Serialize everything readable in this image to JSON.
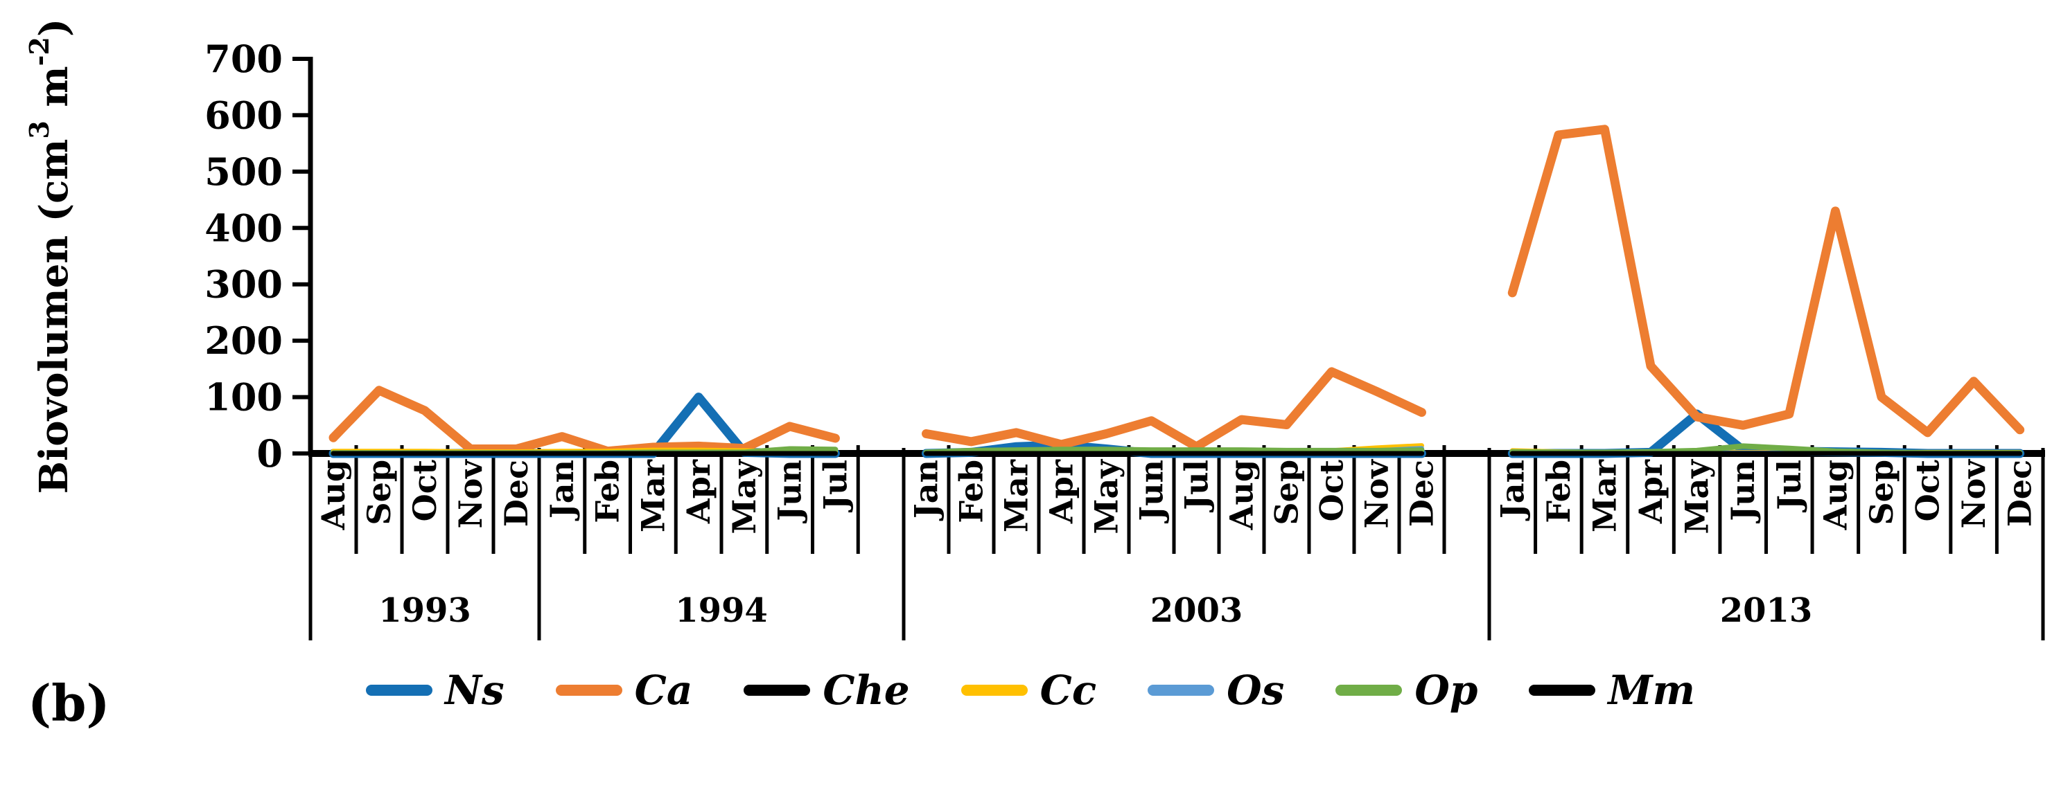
{
  "panel_label": "(b)",
  "legend": {
    "items": [
      {
        "label": "Ns",
        "color": "#146FB4"
      },
      {
        "label": "Ca",
        "color": "#ED7D31"
      },
      {
        "label": "Che",
        "color": "#000000"
      },
      {
        "label": "Cc",
        "color": "#FFC000"
      },
      {
        "label": "Os",
        "color": "#5B9BD5"
      },
      {
        "label": "Op",
        "color": "#70AD47"
      },
      {
        "label": "Mm",
        "color": "#000000"
      }
    ]
  },
  "chart_data": {
    "type": "line",
    "ylabel": "Biovolumen (cm³ m⁻²)",
    "ylabel_parts": [
      {
        "t": "Biovolumen (cm",
        "sup": false
      },
      {
        "t": "3",
        "sup": true
      },
      {
        "t": " m",
        "sup": false
      },
      {
        "t": "-2",
        "sup": true
      },
      {
        "t": ")",
        "sup": false
      }
    ],
    "ylim": [
      0,
      700
    ],
    "ystep": 100,
    "yticks": [
      0,
      100,
      200,
      300,
      400,
      500,
      600,
      700
    ],
    "grid": false,
    "legend_position": "bottom",
    "groups": [
      {
        "year": "1993",
        "segment": "A",
        "slots": 5,
        "months": [
          "Aug",
          "Sep",
          "Oct",
          "Nov",
          "Dec"
        ]
      },
      {
        "year": "1994",
        "segment": "A",
        "slots": 8,
        "months": [
          "Jan",
          "Feb",
          "Mar",
          "Apr",
          "May",
          "Jun",
          "Jul"
        ]
      },
      {
        "year": "2003",
        "segment": "B",
        "slots": 13,
        "months": [
          "Jan",
          "Feb",
          "Mar",
          "Apr",
          "May",
          "Jun",
          "Jul",
          "Aug",
          "Sep",
          "Oct",
          "Nov",
          "Dec"
        ]
      },
      {
        "year": "2013",
        "segment": "C",
        "slots": 12,
        "months": [
          "Jan",
          "Feb",
          "Mar",
          "Apr",
          "May",
          "Jun",
          "Jul",
          "Aug",
          "Sep",
          "Oct",
          "Nov",
          "Dec"
        ]
      }
    ],
    "series": [
      {
        "name": "Ns",
        "color": "#146FB4",
        "width": 13,
        "values": {
          "1993": [
            0,
            0,
            0,
            0,
            0
          ],
          "1994": [
            0,
            0,
            0,
            100,
            2,
            0,
            0
          ],
          "2003": [
            0,
            2,
            12,
            15,
            8,
            0,
            0,
            0,
            0,
            0,
            0,
            0
          ],
          "2013": [
            0,
            0,
            0,
            2,
            70,
            6,
            4,
            3,
            2,
            0,
            0,
            0
          ]
        }
      },
      {
        "name": "Ca",
        "color": "#ED7D31",
        "width": 13,
        "values": {
          "1993": [
            28,
            112,
            76,
            8,
            8
          ],
          "1994": [
            30,
            4,
            11,
            13,
            9,
            48,
            27
          ],
          "2003": [
            35,
            21,
            37,
            16,
            35,
            58,
            12,
            60,
            51,
            145,
            110,
            73
          ],
          "2013": [
            285,
            565,
            575,
            155,
            65,
            50,
            70,
            430,
            100,
            37,
            128,
            42
          ]
        }
      },
      {
        "name": "Che",
        "color": "#000000",
        "width": 7,
        "values": {
          "1993": [
            2,
            2,
            2,
            2,
            2
          ],
          "1994": [
            2,
            2,
            2,
            2,
            2,
            2,
            2
          ],
          "2003": [
            1,
            1,
            1,
            1,
            1,
            1,
            1,
            1,
            1,
            1,
            1,
            1
          ],
          "2013": [
            1,
            1,
            1,
            3,
            3,
            1,
            1,
            1,
            1,
            1,
            1,
            1
          ]
        }
      },
      {
        "name": "Cc",
        "color": "#FFC000",
        "width": 7,
        "values": {
          "1993": [
            4,
            4,
            4,
            3,
            3
          ],
          "1994": [
            4,
            4,
            6,
            6,
            5,
            3,
            3
          ],
          "2003": [
            2,
            2,
            2,
            2,
            2,
            2,
            2,
            2,
            3,
            5,
            10,
            14
          ],
          "2013": [
            5,
            3,
            2,
            2,
            2,
            2,
            2,
            2,
            2,
            2,
            2,
            2
          ]
        }
      },
      {
        "name": "Os",
        "color": "#5B9BD5",
        "width": 7,
        "values": {
          "1993": [
            0,
            0,
            0,
            0,
            0
          ],
          "1994": [
            0,
            0,
            0,
            0,
            0,
            0,
            0
          ],
          "2003": [
            0,
            0,
            0,
            0,
            0,
            0,
            0,
            0,
            0,
            2,
            5,
            9
          ],
          "2013": [
            1,
            1,
            1,
            1,
            1,
            1,
            1,
            1,
            1,
            1,
            1,
            1
          ]
        }
      },
      {
        "name": "Op",
        "color": "#70AD47",
        "width": 8,
        "values": {
          "1993": [
            1,
            1,
            1,
            1,
            1
          ],
          "1994": [
            1,
            1,
            2,
            2,
            2,
            8,
            7
          ],
          "2003": [
            2,
            5,
            6,
            7,
            7,
            6,
            6,
            6,
            5,
            5,
            5,
            6
          ],
          "2013": [
            3,
            2,
            2,
            3,
            5,
            13,
            9,
            4,
            2,
            1,
            1,
            1
          ]
        }
      },
      {
        "name": "Mm",
        "color": "#000000",
        "width": 7,
        "values": {
          "1993": [
            0,
            0,
            0,
            0,
            0
          ],
          "1994": [
            0,
            0,
            0,
            0,
            0,
            0,
            0
          ],
          "2003": [
            0,
            0,
            0,
            0,
            0,
            0,
            0,
            0,
            0,
            0,
            0,
            0
          ],
          "2013": [
            0,
            0,
            0,
            0,
            0,
            0,
            0,
            0,
            0,
            0,
            0,
            0
          ]
        }
      }
    ]
  }
}
